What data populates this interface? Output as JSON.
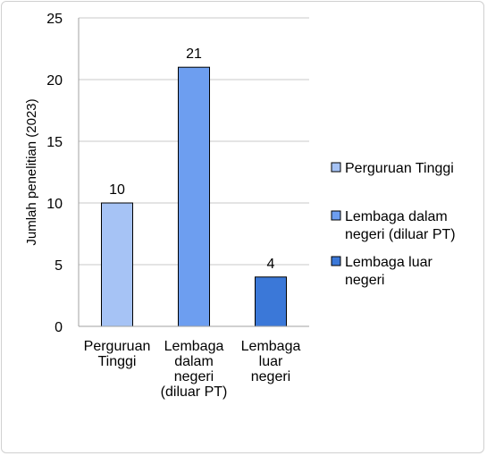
{
  "chart_data": {
    "type": "bar",
    "categories": [
      "Perguruan Tinggi",
      "Lembaga dalam negeri (diluar PT)",
      "Lembaga luar negeri"
    ],
    "category_lines": [
      [
        "Perguruan",
        "Tinggi"
      ],
      [
        "Lembaga",
        "dalam",
        "negeri",
        "(diluar PT)"
      ],
      [
        "Lembaga",
        "luar",
        "negeri"
      ]
    ],
    "values": [
      10,
      21,
      4
    ],
    "colors": [
      "#a6c3f5",
      "#6d9ef0",
      "#3b78d8"
    ],
    "ylabel": "Jumlah penelitian (2023)",
    "xlabel": "",
    "ylim": [
      0,
      25
    ],
    "yticks": [
      0,
      5,
      10,
      15,
      20,
      25
    ],
    "grid": true,
    "legend": {
      "placement": "right",
      "entries": [
        [
          "Perguruan Tinggi"
        ],
        [
          "Lembaga dalam",
          "negeri (diluar PT)"
        ],
        [
          "Lembaga luar",
          "negeri"
        ]
      ]
    }
  }
}
